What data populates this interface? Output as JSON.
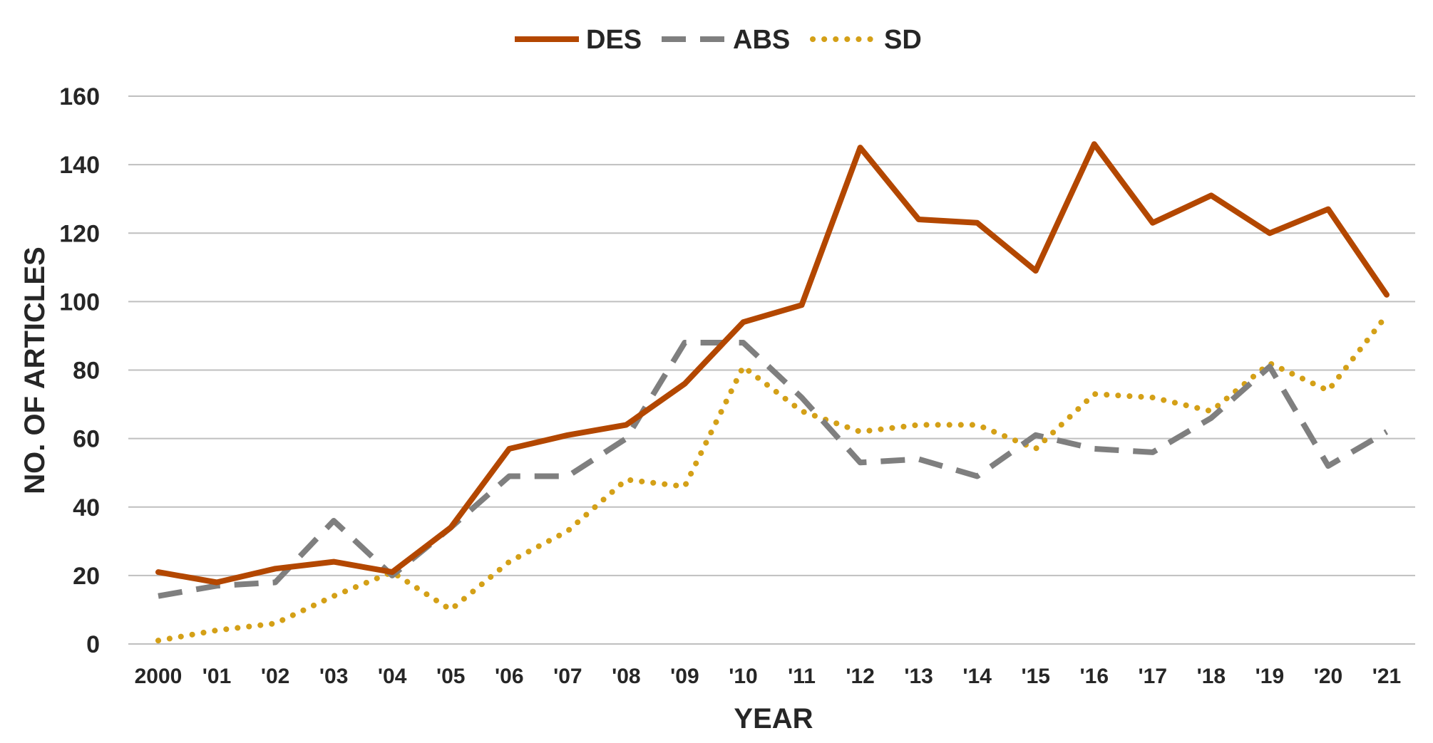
{
  "chart_data": {
    "type": "line",
    "title": "",
    "xlabel": "YEAR",
    "ylabel": "NO. OF ARTICLES",
    "categories": [
      "2000",
      "'01",
      "'02",
      "'03",
      "'04",
      "'05",
      "'06",
      "'07",
      "'08",
      "'09",
      "'10",
      "'11",
      "'12",
      "'13",
      "'14",
      "'15",
      "'16",
      "'17",
      "'18",
      "'19",
      "'20",
      "'21"
    ],
    "ylim": [
      0,
      160
    ],
    "yticks": [
      0,
      20,
      40,
      60,
      80,
      100,
      120,
      140,
      160
    ],
    "grid": true,
    "legend_position": "top-center",
    "series": [
      {
        "name": "DES",
        "color": "#b34700",
        "style": "solid",
        "values": [
          21,
          18,
          22,
          24,
          21,
          34,
          57,
          61,
          64,
          76,
          94,
          99,
          145,
          124,
          123,
          109,
          146,
          123,
          131,
          120,
          127,
          102
        ]
      },
      {
        "name": "ABS",
        "color": "#7f7f7f",
        "style": "dashed",
        "values": [
          14,
          17,
          18,
          36,
          20,
          34,
          49,
          49,
          60,
          88,
          88,
          72,
          53,
          54,
          49,
          61,
          57,
          56,
          66,
          81,
          52,
          62
        ]
      },
      {
        "name": "SD",
        "color": "#d4a017",
        "style": "dotted",
        "values": [
          1,
          4,
          6,
          14,
          21,
          10,
          24,
          33,
          48,
          46,
          81,
          68,
          62,
          64,
          64,
          57,
          73,
          72,
          68,
          82,
          74,
          96
        ]
      }
    ]
  }
}
